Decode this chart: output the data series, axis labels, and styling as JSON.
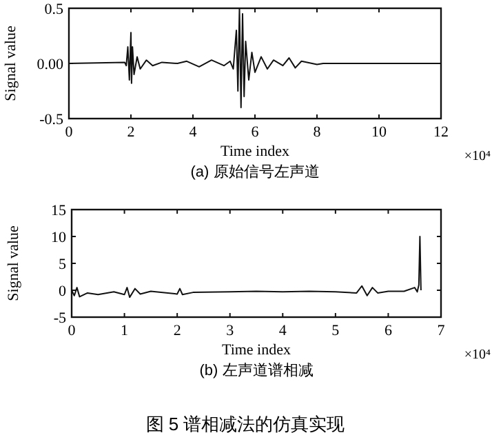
{
  "chart_data": [
    {
      "type": "line",
      "title": "(a) 原始信号左声道",
      "xlabel": "Time index",
      "ylabel": "Signal value",
      "annotations": [
        "×10⁴"
      ],
      "xlim": [
        0,
        12
      ],
      "ylim": [
        -0.5,
        0.5
      ],
      "xticks": [
        0,
        2,
        4,
        6,
        8,
        10,
        12
      ],
      "yticks": [
        -0.5,
        {
          "value": 0,
          "label": "0.00"
        },
        0.5
      ],
      "grid": false,
      "series": [
        {
          "color": "#111111",
          "x": [
            0,
            1.8,
            1.85,
            1.9,
            1.95,
            2.0,
            2.02,
            2.05,
            2.1,
            2.2,
            2.3,
            2.5,
            2.7,
            3.0,
            3.5,
            3.8,
            4.2,
            4.6,
            5.0,
            5.2,
            5.3,
            5.4,
            5.45,
            5.5,
            5.55,
            5.6,
            5.65,
            5.7,
            5.8,
            5.9,
            6.0,
            6.2,
            6.4,
            6.6,
            6.9,
            7.1,
            7.3,
            7.5,
            8.0,
            8.2,
            12
          ],
          "values": [
            0,
            0.01,
            -0.02,
            0.15,
            -0.15,
            0.28,
            -0.18,
            0.15,
            -0.1,
            0.06,
            -0.05,
            0.03,
            -0.02,
            0.01,
            0,
            0.02,
            -0.03,
            0.03,
            -0.02,
            0.02,
            -0.05,
            0.3,
            -0.25,
            0.5,
            -0.4,
            0.45,
            -0.3,
            0.2,
            -0.15,
            0.1,
            -0.08,
            0.06,
            -0.05,
            0.03,
            -0.02,
            0.05,
            -0.04,
            0.02,
            -0.01,
            0,
            0
          ]
        }
      ]
    },
    {
      "type": "line",
      "title": "(b) 左声道谱相减",
      "xlabel": "Time index",
      "ylabel": "Signal value",
      "annotations": [
        "×10⁴",
        "图 5 谱相减法的仿真实现"
      ],
      "xlim": [
        0,
        7
      ],
      "ylim": [
        -5,
        15
      ],
      "xticks": [
        0,
        1,
        2,
        3,
        4,
        5,
        6,
        7
      ],
      "yticks": [
        -5,
        0,
        5,
        10,
        15
      ],
      "grid": false,
      "series": [
        {
          "color": "#111111",
          "x": [
            0,
            0.05,
            0.1,
            0.15,
            0.3,
            0.5,
            0.8,
            1.0,
            1.05,
            1.1,
            1.2,
            1.3,
            1.5,
            2.0,
            2.05,
            2.1,
            2.3,
            3.0,
            3.5,
            4.0,
            4.5,
            5.0,
            5.4,
            5.5,
            5.6,
            5.7,
            5.8,
            6.0,
            6.3,
            6.5,
            6.55,
            6.58,
            6.6,
            6.62
          ],
          "values": [
            0,
            -1,
            0.5,
            -1.2,
            -0.5,
            -0.8,
            -0.3,
            -0.8,
            0.5,
            -1.3,
            0.3,
            -0.7,
            -0.2,
            -0.7,
            0.3,
            -0.8,
            -0.4,
            -0.3,
            -0.2,
            -0.3,
            -0.2,
            -0.3,
            -0.5,
            0.8,
            -1,
            0.5,
            -0.5,
            -0.2,
            -0.2,
            0.5,
            -0.3,
            1,
            10,
            0
          ]
        }
      ]
    }
  ]
}
